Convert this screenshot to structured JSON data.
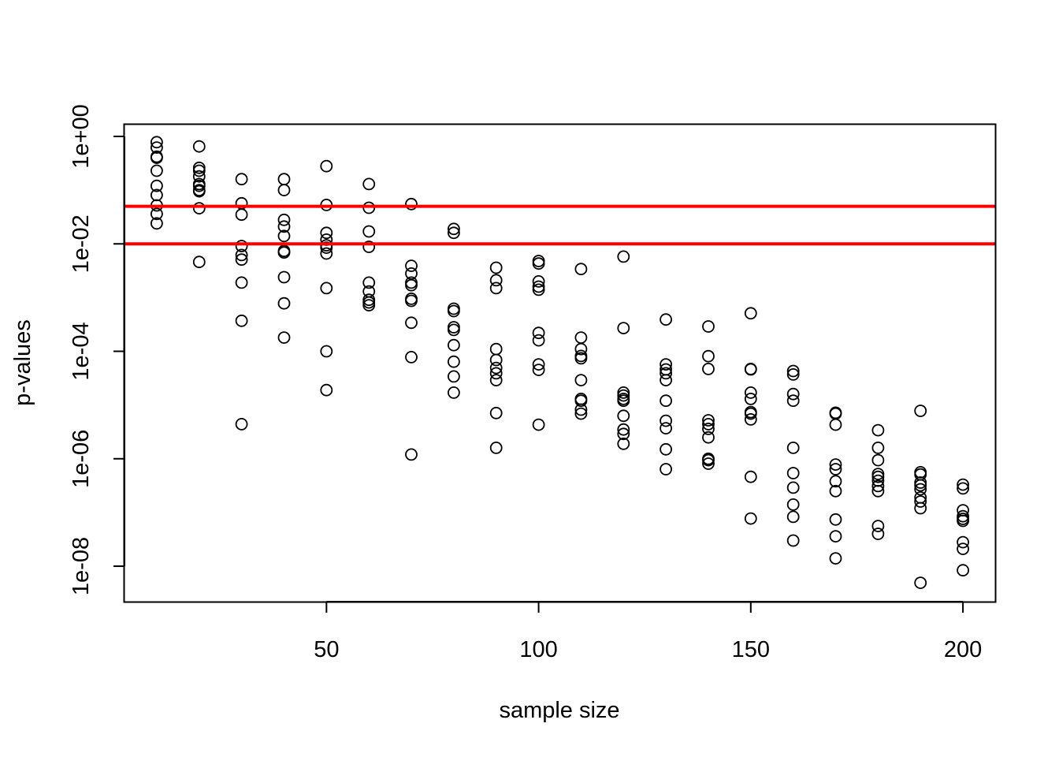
{
  "chart_data": {
    "type": "scatter",
    "title": "",
    "xlabel": "sample size",
    "ylabel": "p-values",
    "y_scale": "log10",
    "xlim": [
      2.4,
      207.6
    ],
    "ylim_log10": [
      -8.66,
      0.22
    ],
    "x_ticks": [
      50,
      100,
      150,
      200
    ],
    "x_tick_labels": [
      "50",
      "100",
      "150",
      "200"
    ],
    "y_ticks_log10": [
      0,
      -2,
      -4,
      -6,
      -8
    ],
    "y_tick_labels": [
      "1e+00",
      "1e-02",
      "1e-04",
      "1e-06",
      "1e-08"
    ],
    "hlines": [
      {
        "y": 0.05,
        "color": "#ff0000"
      },
      {
        "y": 0.01,
        "color": "#ff0000"
      }
    ],
    "marker": {
      "shape": "open-circle",
      "color": "#000000"
    },
    "points": [
      {
        "x": 10,
        "y": 0.78
      },
      {
        "x": 10,
        "y": 0.62
      },
      {
        "x": 10,
        "y": 0.42
      },
      {
        "x": 10,
        "y": 0.4
      },
      {
        "x": 10,
        "y": 0.23
      },
      {
        "x": 10,
        "y": 0.12
      },
      {
        "x": 10,
        "y": 0.081
      },
      {
        "x": 10,
        "y": 0.052
      },
      {
        "x": 10,
        "y": 0.036
      },
      {
        "x": 10,
        "y": 0.024
      },
      {
        "x": 20,
        "y": 0.65
      },
      {
        "x": 20,
        "y": 0.26
      },
      {
        "x": 20,
        "y": 0.23
      },
      {
        "x": 20,
        "y": 0.18
      },
      {
        "x": 20,
        "y": 0.13
      },
      {
        "x": 20,
        "y": 0.12
      },
      {
        "x": 20,
        "y": 0.1
      },
      {
        "x": 20,
        "y": 0.095
      },
      {
        "x": 20,
        "y": 0.046
      },
      {
        "x": 20,
        "y": 0.0046
      },
      {
        "x": 30,
        "y": 0.16
      },
      {
        "x": 30,
        "y": 0.057
      },
      {
        "x": 30,
        "y": 0.035
      },
      {
        "x": 30,
        "y": 0.0091
      },
      {
        "x": 30,
        "y": 0.0062
      },
      {
        "x": 30,
        "y": 0.0051
      },
      {
        "x": 30,
        "y": 0.0019
      },
      {
        "x": 30,
        "y": 0.00037
      },
      {
        "x": 30,
        "y": 4.4e-06
      },
      {
        "x": 40,
        "y": 0.16
      },
      {
        "x": 40,
        "y": 0.1
      },
      {
        "x": 40,
        "y": 0.028
      },
      {
        "x": 40,
        "y": 0.021
      },
      {
        "x": 40,
        "y": 0.014
      },
      {
        "x": 40,
        "y": 0.0074
      },
      {
        "x": 40,
        "y": 0.0069
      },
      {
        "x": 40,
        "y": 0.0024
      },
      {
        "x": 40,
        "y": 0.00078
      },
      {
        "x": 40,
        "y": 0.00018
      },
      {
        "x": 50,
        "y": 0.28
      },
      {
        "x": 50,
        "y": 0.053
      },
      {
        "x": 50,
        "y": 0.016
      },
      {
        "x": 50,
        "y": 0.012
      },
      {
        "x": 50,
        "y": 0.0094
      },
      {
        "x": 50,
        "y": 0.0085
      },
      {
        "x": 50,
        "y": 0.0066
      },
      {
        "x": 50,
        "y": 0.0015
      },
      {
        "x": 50,
        "y": 0.0001
      },
      {
        "x": 50,
        "y": 1.9e-05
      },
      {
        "x": 60,
        "y": 0.13
      },
      {
        "x": 60,
        "y": 0.047
      },
      {
        "x": 60,
        "y": 0.017
      },
      {
        "x": 60,
        "y": 0.0088
      },
      {
        "x": 60,
        "y": 0.0019
      },
      {
        "x": 60,
        "y": 0.0013
      },
      {
        "x": 60,
        "y": 0.00091
      },
      {
        "x": 60,
        "y": 0.00081
      },
      {
        "x": 60,
        "y": 0.00072
      },
      {
        "x": 70,
        "y": 0.055
      },
      {
        "x": 70,
        "y": 0.0039
      },
      {
        "x": 70,
        "y": 0.0028
      },
      {
        "x": 70,
        "y": 0.0019
      },
      {
        "x": 70,
        "y": 0.0017
      },
      {
        "x": 70,
        "y": 0.00095
      },
      {
        "x": 70,
        "y": 0.00087
      },
      {
        "x": 70,
        "y": 0.00034
      },
      {
        "x": 70,
        "y": 7.8e-05
      },
      {
        "x": 70,
        "y": 1.2e-06
      },
      {
        "x": 80,
        "y": 0.019
      },
      {
        "x": 80,
        "y": 0.016
      },
      {
        "x": 80,
        "y": 0.00062
      },
      {
        "x": 80,
        "y": 0.00056
      },
      {
        "x": 80,
        "y": 0.00028
      },
      {
        "x": 80,
        "y": 0.00025
      },
      {
        "x": 80,
        "y": 0.00013
      },
      {
        "x": 80,
        "y": 6.4e-05
      },
      {
        "x": 80,
        "y": 3.4e-05
      },
      {
        "x": 80,
        "y": 1.7e-05
      },
      {
        "x": 90,
        "y": 0.0036
      },
      {
        "x": 90,
        "y": 0.0021
      },
      {
        "x": 90,
        "y": 0.0015
      },
      {
        "x": 90,
        "y": 0.00011
      },
      {
        "x": 90,
        "y": 6.9e-05
      },
      {
        "x": 90,
        "y": 4.9e-05
      },
      {
        "x": 90,
        "y": 3.9e-05
      },
      {
        "x": 90,
        "y": 2.9e-05
      },
      {
        "x": 90,
        "y": 7.1e-06
      },
      {
        "x": 90,
        "y": 1.6e-06
      },
      {
        "x": 100,
        "y": 0.0048
      },
      {
        "x": 100,
        "y": 0.0043
      },
      {
        "x": 100,
        "y": 0.002
      },
      {
        "x": 100,
        "y": 0.0016
      },
      {
        "x": 100,
        "y": 0.0014
      },
      {
        "x": 100,
        "y": 0.00022
      },
      {
        "x": 100,
        "y": 0.00016
      },
      {
        "x": 100,
        "y": 5.7e-05
      },
      {
        "x": 100,
        "y": 4.5e-05
      },
      {
        "x": 100,
        "y": 4.3e-06
      },
      {
        "x": 110,
        "y": 0.0034
      },
      {
        "x": 110,
        "y": 0.00018
      },
      {
        "x": 110,
        "y": 0.00011
      },
      {
        "x": 110,
        "y": 8.2e-05
      },
      {
        "x": 110,
        "y": 7.4e-05
      },
      {
        "x": 110,
        "y": 2.9e-05
      },
      {
        "x": 110,
        "y": 1.3e-05
      },
      {
        "x": 110,
        "y": 1.2e-05
      },
      {
        "x": 110,
        "y": 8.2e-06
      },
      {
        "x": 110,
        "y": 6.9e-06
      },
      {
        "x": 120,
        "y": 0.0058
      },
      {
        "x": 120,
        "y": 0.00027
      },
      {
        "x": 120,
        "y": 1.7e-05
      },
      {
        "x": 120,
        "y": 1.5e-05
      },
      {
        "x": 120,
        "y": 1.3e-05
      },
      {
        "x": 120,
        "y": 1.2e-05
      },
      {
        "x": 120,
        "y": 6.3e-06
      },
      {
        "x": 120,
        "y": 3.5e-06
      },
      {
        "x": 120,
        "y": 2.9e-06
      },
      {
        "x": 120,
        "y": 1.9e-06
      },
      {
        "x": 130,
        "y": 0.00039
      },
      {
        "x": 130,
        "y": 5.7e-05
      },
      {
        "x": 130,
        "y": 4.6e-05
      },
      {
        "x": 130,
        "y": 3.9e-05
      },
      {
        "x": 130,
        "y": 2.9e-05
      },
      {
        "x": 130,
        "y": 1.2e-05
      },
      {
        "x": 130,
        "y": 5.1e-06
      },
      {
        "x": 130,
        "y": 3.7e-06
      },
      {
        "x": 130,
        "y": 1.5e-06
      },
      {
        "x": 130,
        "y": 6.4e-07
      },
      {
        "x": 140,
        "y": 0.00029
      },
      {
        "x": 140,
        "y": 8.1e-05
      },
      {
        "x": 140,
        "y": 4.7e-05
      },
      {
        "x": 140,
        "y": 5.2e-06
      },
      {
        "x": 140,
        "y": 4.4e-06
      },
      {
        "x": 140,
        "y": 3.6e-06
      },
      {
        "x": 140,
        "y": 2.5e-06
      },
      {
        "x": 140,
        "y": 1e-06
      },
      {
        "x": 140,
        "y": 9.4e-07
      },
      {
        "x": 140,
        "y": 8.1e-07
      },
      {
        "x": 150,
        "y": 0.00051
      },
      {
        "x": 150,
        "y": 4.7e-05
      },
      {
        "x": 150,
        "y": 4.6e-05
      },
      {
        "x": 150,
        "y": 1.7e-05
      },
      {
        "x": 150,
        "y": 1.3e-05
      },
      {
        "x": 150,
        "y": 7.4e-06
      },
      {
        "x": 150,
        "y": 6.9e-06
      },
      {
        "x": 150,
        "y": 5.4e-06
      },
      {
        "x": 150,
        "y": 4.6e-07
      },
      {
        "x": 150,
        "y": 7.7e-08
      },
      {
        "x": 160,
        "y": 4.3e-05
      },
      {
        "x": 160,
        "y": 3.7e-05
      },
      {
        "x": 160,
        "y": 1.6e-05
      },
      {
        "x": 160,
        "y": 1.2e-05
      },
      {
        "x": 160,
        "y": 1.6e-06
      },
      {
        "x": 160,
        "y": 5.4e-07
      },
      {
        "x": 160,
        "y": 2.9e-07
      },
      {
        "x": 160,
        "y": 1.4e-07
      },
      {
        "x": 160,
        "y": 8.3e-08
      },
      {
        "x": 160,
        "y": 3e-08
      },
      {
        "x": 170,
        "y": 7.2e-06
      },
      {
        "x": 170,
        "y": 6.9e-06
      },
      {
        "x": 170,
        "y": 4.3e-06
      },
      {
        "x": 170,
        "y": 7.8e-07
      },
      {
        "x": 170,
        "y": 6.4e-07
      },
      {
        "x": 170,
        "y": 3.8e-07
      },
      {
        "x": 170,
        "y": 2.5e-07
      },
      {
        "x": 170,
        "y": 7.4e-08
      },
      {
        "x": 170,
        "y": 3.6e-08
      },
      {
        "x": 170,
        "y": 1.4e-08
      },
      {
        "x": 180,
        "y": 3.4e-06
      },
      {
        "x": 180,
        "y": 1.6e-06
      },
      {
        "x": 180,
        "y": 9.4e-07
      },
      {
        "x": 180,
        "y": 5.2e-07
      },
      {
        "x": 180,
        "y": 4.6e-07
      },
      {
        "x": 180,
        "y": 3.9e-07
      },
      {
        "x": 180,
        "y": 3.1e-07
      },
      {
        "x": 180,
        "y": 2.5e-07
      },
      {
        "x": 180,
        "y": 5.6e-08
      },
      {
        "x": 180,
        "y": 4e-08
      },
      {
        "x": 190,
        "y": 7.8e-06
      },
      {
        "x": 190,
        "y": 5.6e-07
      },
      {
        "x": 190,
        "y": 5.1e-07
      },
      {
        "x": 190,
        "y": 3.6e-07
      },
      {
        "x": 190,
        "y": 3.2e-07
      },
      {
        "x": 190,
        "y": 2.7e-07
      },
      {
        "x": 190,
        "y": 1.9e-07
      },
      {
        "x": 190,
        "y": 1.6e-07
      },
      {
        "x": 190,
        "y": 1.2e-07
      },
      {
        "x": 190,
        "y": 4.9e-09
      },
      {
        "x": 200,
        "y": 3.3e-07
      },
      {
        "x": 200,
        "y": 2.8e-07
      },
      {
        "x": 200,
        "y": 1.1e-07
      },
      {
        "x": 200,
        "y": 8.5e-08
      },
      {
        "x": 200,
        "y": 7.6e-08
      },
      {
        "x": 200,
        "y": 7e-08
      },
      {
        "x": 200,
        "y": 2.8e-08
      },
      {
        "x": 200,
        "y": 2.1e-08
      },
      {
        "x": 200,
        "y": 8.4e-09
      }
    ]
  }
}
